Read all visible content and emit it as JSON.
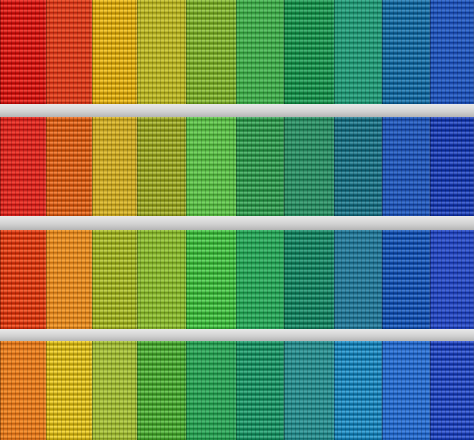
{
  "scene": {
    "subject": "facade-color-panels",
    "rows": [
      {
        "name": "row-1",
        "colors": [
          "#d9261f",
          "#d6401d",
          "#e0b21e",
          "#b6b22a",
          "#86b43b",
          "#45aa4f",
          "#2a9a5a",
          "#279877",
          "#2575a8",
          "#2457b7"
        ]
      },
      {
        "name": "row-2",
        "colors": [
          "#d62a20",
          "#dd6a25",
          "#c9a828",
          "#9faa33",
          "#5dba4a",
          "#3f9f5a",
          "#2f8c64",
          "#2a7a8c",
          "#2458b4",
          "#2b4bb8"
        ]
      },
      {
        "name": "row-3",
        "colors": [
          "#e0491f",
          "#e08a23",
          "#a8b834",
          "#89b534",
          "#4ec04d",
          "#2ea45b",
          "#268d6d",
          "#287896",
          "#255fb8",
          "#2a4bbd"
        ]
      },
      {
        "name": "row-4",
        "colors": [
          "#e07b1f",
          "#dcbf2a",
          "#9fb73a",
          "#56ad40",
          "#2f9f57",
          "#2b9a6f",
          "#2d8b8c",
          "#2a8ec0",
          "#2b6cc8",
          "#3152c2"
        ]
      }
    ]
  }
}
